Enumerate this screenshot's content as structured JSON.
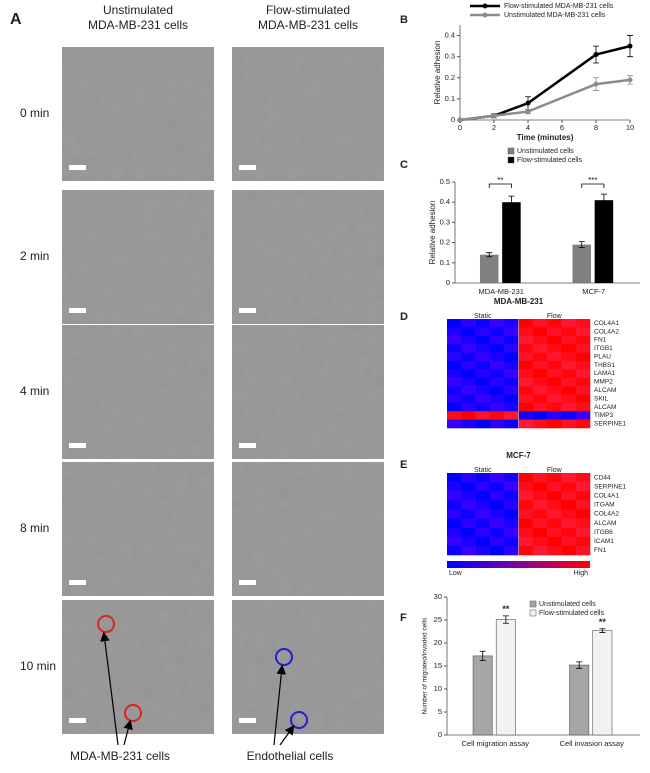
{
  "panel_a": {
    "label": "A",
    "columns": [
      [
        "Unstimulated",
        "MDA-MB-231 cells"
      ],
      [
        "Flow-stimulated",
        "MDA-MB-231 cells"
      ]
    ],
    "rows": [
      "0 min",
      "2 min",
      "4 min",
      "8 min",
      "10 min"
    ],
    "pointers": [
      "MDA-MB-231 cells",
      "Endothelial cells"
    ]
  },
  "chart_data": [
    {
      "panel": "B",
      "type": "line",
      "xlabel": "Time (minutes)",
      "ylabel": "Relative adhesion",
      "x": [
        0,
        2,
        4,
        8,
        10
      ],
      "series": [
        {
          "name": "Flow-stimulated MDA-MB-231 cells",
          "color": "#000000",
          "values": [
            0,
            0.02,
            0.08,
            0.31,
            0.35
          ],
          "errors": [
            0,
            0.01,
            0.03,
            0.04,
            0.05
          ]
        },
        {
          "name": "Unstimulated MDA-MB-231 cells",
          "color": "#8c8c8c",
          "values": [
            0,
            0.02,
            0.04,
            0.17,
            0.19
          ],
          "errors": [
            0,
            0.01,
            0.01,
            0.03,
            0.02
          ]
        }
      ],
      "xlim": [
        0,
        10
      ],
      "xticks": [
        0,
        2,
        4,
        6,
        8,
        10
      ],
      "ylim": [
        0,
        0.45
      ],
      "yticks": [
        0,
        0.1,
        0.2,
        0.3,
        0.4
      ]
    },
    {
      "panel": "C",
      "type": "bar",
      "ylabel": "Relative adhesion",
      "categories": [
        "MDA-MB-231",
        "MCF-7"
      ],
      "series": [
        {
          "name": "Unstimulated cells",
          "color": "#808080",
          "values": [
            0.14,
            0.19
          ],
          "errors": [
            0.01,
            0.015
          ]
        },
        {
          "name": "Flow-stimulated cells",
          "color": "#000000",
          "values": [
            0.4,
            0.41
          ],
          "errors": [
            0.03,
            0.03
          ]
        }
      ],
      "annotations": [
        "**",
        "***"
      ],
      "ylim": [
        0,
        0.5
      ],
      "yticks": [
        0,
        0.1,
        0.2,
        0.3,
        0.4,
        0.5
      ]
    },
    {
      "panel": "F",
      "type": "bar",
      "ylabel": "Number of migrated/invaded cells",
      "categories": [
        "Cell migration assay",
        "Cell invasion assay"
      ],
      "series": [
        {
          "name": "Unstimulated cells",
          "color": "#a6a6a6",
          "values": [
            17.2,
            15.2
          ],
          "errors": [
            1,
            0.7
          ]
        },
        {
          "name": "Flow-stimulated cells",
          "color": "#f2f2f2",
          "values": [
            25.1,
            22.7
          ],
          "errors": [
            0.8,
            0.4
          ]
        }
      ],
      "annotations": [
        "**",
        "**"
      ],
      "ylim": [
        0,
        30
      ],
      "yticks": [
        0,
        5,
        10,
        15,
        20,
        25,
        30
      ]
    }
  ],
  "heatmaps": [
    {
      "panel": "D",
      "title": "MDA-MB-231",
      "columns": [
        "Static",
        "Flow"
      ],
      "genes": [
        "COL4A1",
        "COL4A2",
        "FN1",
        "ITGB1",
        "PLAU",
        "THBS1",
        "LAMA1",
        "MMP2",
        "ALCAM",
        "SKIL",
        "ALCAM",
        "TIMP3",
        "SERPINE1"
      ]
    },
    {
      "panel": "E",
      "title": "MCF-7",
      "columns": [
        "Static",
        "Flow"
      ],
      "genes": [
        "CD44",
        "SERPINE1",
        "COL4A1",
        "ITGAM",
        "COL4A2",
        "ALCAM",
        "ITGB6",
        "ICAM1",
        "FN1"
      ]
    }
  ],
  "colorbar": {
    "low": "Low",
    "high": "High"
  }
}
